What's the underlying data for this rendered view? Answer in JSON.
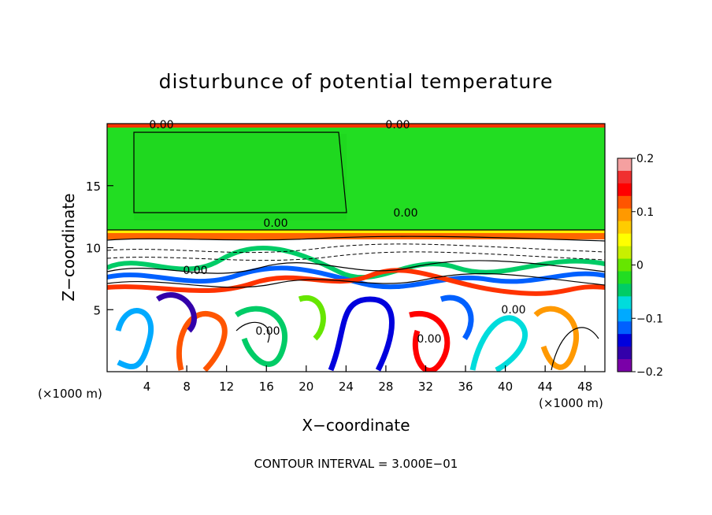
{
  "chart_data": {
    "type": "heatmap",
    "title": "disturbunce of potential temperature",
    "xlabel": "X−coordinate",
    "ylabel": "Z−coordinate",
    "x_unit": "(×1000 m)",
    "x_unit_right": "(×1000 m)",
    "xlim": [
      0,
      50
    ],
    "ylim": [
      0,
      20
    ],
    "x_ticks": [
      4,
      8,
      12,
      16,
      20,
      24,
      28,
      32,
      36,
      40,
      44,
      48
    ],
    "y_ticks": [
      5,
      10,
      15
    ],
    "footer": "CONTOUR INTERVAL =  3.000E−01",
    "contour_labels": [
      "0.00",
      "0.00",
      "0.00",
      "0.00",
      "0.00",
      "0.00",
      "0.00",
      "0.00"
    ],
    "colorbar": {
      "range": [
        -0.2,
        0.2
      ],
      "ticks": [
        "0.2",
        "0.1",
        "0",
        "−0.1",
        "−0.2"
      ],
      "colors": [
        "#f5a0a0",
        "#f03030",
        "#ff0000",
        "#ff5500",
        "#ff9900",
        "#ffcc00",
        "#ffff00",
        "#c8f000",
        "#66e600",
        "#22dd22",
        "#00cc66",
        "#00dcdc",
        "#00aaff",
        "#0060ff",
        "#0000dd",
        "#3300aa",
        "#7a00a8"
      ]
    },
    "grid": false
  }
}
